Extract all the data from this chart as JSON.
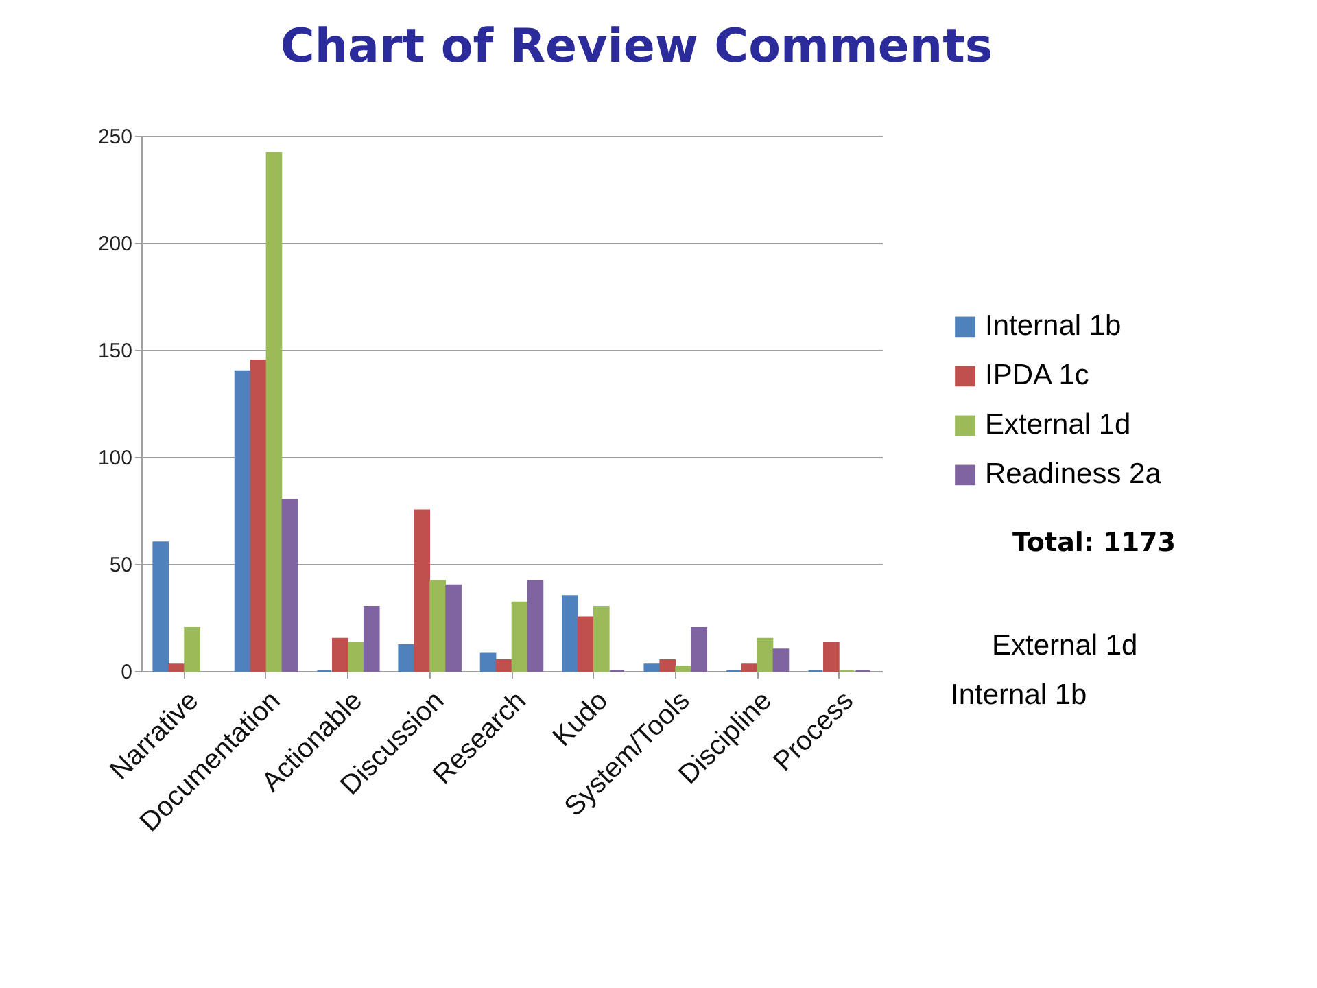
{
  "chart_data": {
    "type": "bar",
    "title": "Chart of Review Comments",
    "categories": [
      "Narrative",
      "Documentation",
      "Actionable",
      "Discussion",
      "Research",
      "Kudo",
      "System/Tools",
      "Discipline",
      "Process"
    ],
    "series": [
      {
        "name": "Internal 1b",
        "color": "#4f81bd",
        "values": [
          60,
          140,
          0,
          12,
          8,
          35,
          3,
          0,
          0
        ]
      },
      {
        "name": "IPDA 1c",
        "color": "#c0504d",
        "values": [
          3,
          145,
          15,
          75,
          5,
          25,
          5,
          3,
          13
        ]
      },
      {
        "name": "External 1d",
        "color": "#9bbb59",
        "values": [
          20,
          242,
          13,
          42,
          32,
          30,
          2,
          15,
          0
        ]
      },
      {
        "name": "Readiness 2a",
        "color": "#8064a2",
        "values": [
          null,
          80,
          30,
          40,
          42,
          0,
          20,
          10,
          0
        ]
      }
    ],
    "ylim": [
      0,
      250
    ],
    "yticks": [
      0,
      50,
      100,
      150,
      200,
      250
    ],
    "grid": "y",
    "legend": "right",
    "annotations": [
      "Total: 1173",
      "External 1d",
      "Internal 1b"
    ]
  }
}
